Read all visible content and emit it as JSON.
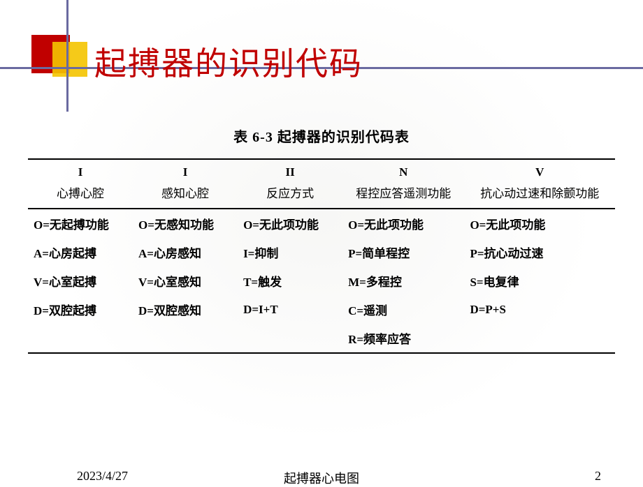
{
  "title": "起搏器的识别代码",
  "table": {
    "caption": "表 6-3  起搏器的识别代码表",
    "header_roman": [
      "I",
      "I",
      "II",
      "N",
      "V"
    ],
    "header_label": [
      "心搏心腔",
      "感知心腔",
      "反应方式",
      "程控应答遥测功能",
      "抗心动过速和除颤功能"
    ],
    "rows": [
      [
        "O=无起搏功能",
        "O=无感知功能",
        "O=无此项功能",
        "O=无此项功能",
        "O=无此项功能"
      ],
      [
        "A=心房起搏",
        "A=心房感知",
        "I=抑制",
        "P=简单程控",
        "P=抗心动过速"
      ],
      [
        "V=心室起搏",
        "V=心室感知",
        "T=触发",
        "M=多程控",
        "S=电复律"
      ],
      [
        "D=双腔起搏",
        "D=双腔感知",
        "D=I+T",
        "C=遥测",
        "D=P+S"
      ],
      [
        "",
        "",
        "",
        "R=频率应答",
        ""
      ]
    ]
  },
  "footer": {
    "date": "2023/4/27",
    "title": "起搏器心电图",
    "page": "2"
  },
  "colors": {
    "accent_red": "#c00000",
    "accent_yellow": "#f4c400",
    "line_color": "#6a6aa0",
    "text_black": "#000000",
    "background": "#ffffff"
  }
}
